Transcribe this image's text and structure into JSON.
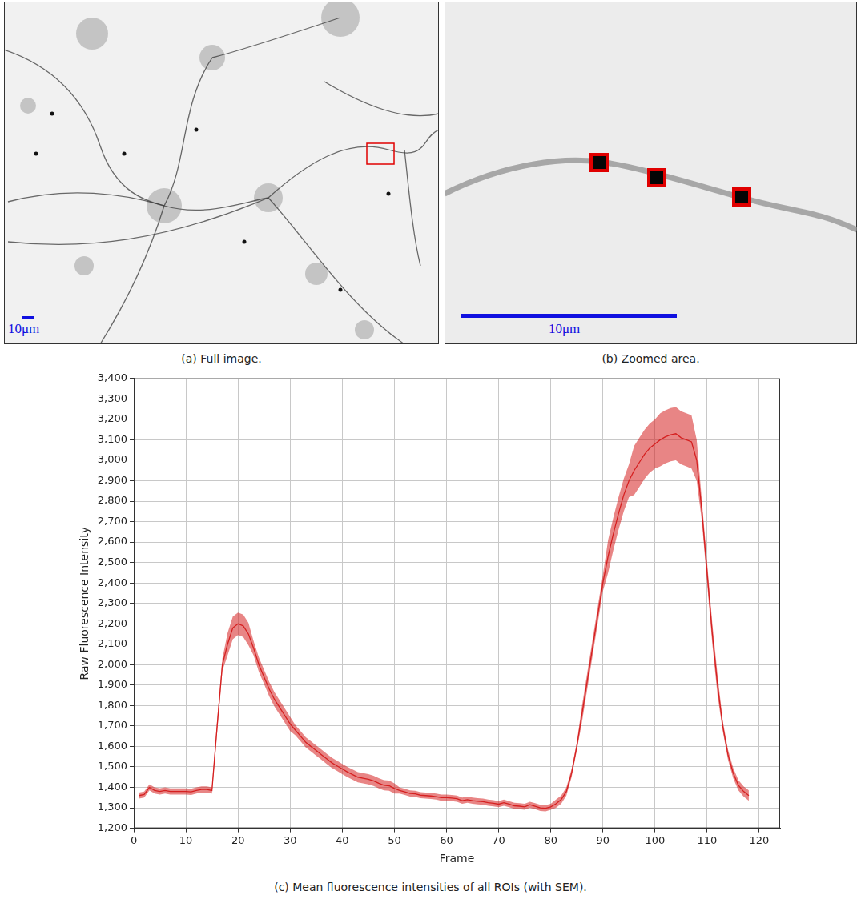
{
  "panels": [
    {
      "caption": "(a) Full image.",
      "scale_bar": "10μm"
    },
    {
      "caption": "(b) Zoomed area.",
      "scale_bar": "10μm"
    }
  ],
  "chart_data": {
    "type": "line",
    "title": "(c) Mean fluorescence intensities of all ROIs (with SEM).",
    "x_label": "Frame",
    "y_label": "Raw Fluorescence Intensity",
    "x": [
      1,
      2,
      3,
      4,
      5,
      6,
      7,
      8,
      9,
      10,
      11,
      12,
      13,
      14,
      15,
      16,
      17,
      18,
      19,
      20,
      21,
      22,
      23,
      24,
      25,
      26,
      27,
      28,
      29,
      30,
      31,
      32,
      33,
      34,
      35,
      36,
      37,
      38,
      39,
      40,
      41,
      42,
      43,
      44,
      45,
      46,
      47,
      48,
      49,
      50,
      51,
      52,
      53,
      54,
      55,
      56,
      57,
      58,
      59,
      60,
      61,
      62,
      63,
      64,
      65,
      66,
      67,
      68,
      69,
      70,
      71,
      72,
      73,
      74,
      75,
      76,
      77,
      78,
      79,
      80,
      81,
      82,
      83,
      84,
      85,
      86,
      87,
      88,
      89,
      90,
      91,
      92,
      93,
      94,
      95,
      96,
      97,
      98,
      99,
      100,
      101,
      102,
      103,
      104,
      105,
      106,
      107,
      108,
      109,
      110,
      111,
      112,
      113,
      114,
      115,
      116,
      117,
      118
    ],
    "series": [
      {
        "color": "#d62020",
        "values": [
          1360,
          1365,
          1400,
          1385,
          1380,
          1385,
          1380,
          1380,
          1380,
          1380,
          1378,
          1385,
          1390,
          1390,
          1385,
          1700,
          2000,
          2100,
          2180,
          2200,
          2190,
          2150,
          2080,
          2000,
          1940,
          1880,
          1830,
          1790,
          1750,
          1710,
          1680,
          1650,
          1620,
          1600,
          1580,
          1560,
          1540,
          1520,
          1505,
          1490,
          1475,
          1462,
          1450,
          1445,
          1440,
          1432,
          1420,
          1410,
          1408,
          1395,
          1385,
          1378,
          1370,
          1368,
          1362,
          1360,
          1358,
          1355,
          1350,
          1350,
          1348,
          1345,
          1335,
          1340,
          1335,
          1332,
          1330,
          1325,
          1322,
          1318,
          1325,
          1318,
          1310,
          1308,
          1305,
          1315,
          1308,
          1300,
          1298,
          1305,
          1320,
          1340,
          1380,
          1470,
          1600,
          1760,
          1920,
          2080,
          2240,
          2400,
          2530,
          2640,
          2740,
          2830,
          2900,
          2950,
          2990,
          3030,
          3060,
          3080,
          3100,
          3115,
          3125,
          3130,
          3110,
          3100,
          3090,
          3000,
          2750,
          2450,
          2150,
          1900,
          1700,
          1560,
          1470,
          1410,
          1380,
          1360
        ],
        "sem": [
          15,
          15,
          15,
          15,
          15,
          15,
          15,
          15,
          15,
          15,
          15,
          15,
          15,
          15,
          15,
          30,
          30,
          55,
          55,
          55,
          55,
          55,
          35,
          35,
          35,
          35,
          35,
          35,
          35,
          35,
          25,
          25,
          25,
          25,
          25,
          25,
          25,
          25,
          25,
          25,
          25,
          25,
          25,
          25,
          25,
          25,
          25,
          25,
          25,
          25,
          15,
          15,
          15,
          15,
          15,
          15,
          15,
          15,
          15,
          15,
          15,
          15,
          15,
          15,
          15,
          15,
          15,
          15,
          15,
          15,
          15,
          15,
          15,
          15,
          15,
          15,
          15,
          15,
          15,
          15,
          20,
          20,
          20,
          20,
          20,
          40,
          40,
          40,
          40,
          40,
          80,
          80,
          80,
          80,
          80,
          120,
          120,
          120,
          120,
          120,
          130,
          130,
          130,
          130,
          130,
          130,
          130,
          100,
          50,
          50,
          50,
          50,
          25,
          25,
          25,
          25,
          25,
          25
        ]
      }
    ],
    "xlim": [
      0,
      124
    ],
    "xticks": [
      0,
      10,
      20,
      30,
      40,
      50,
      60,
      70,
      80,
      90,
      100,
      110,
      120
    ],
    "ylim": [
      1200,
      3400
    ],
    "yticks": [
      {
        "value": 1200,
        "label": "1,200"
      },
      {
        "value": 1300,
        "label": "1,300"
      },
      {
        "value": 1400,
        "label": "1,400"
      },
      {
        "value": 1500,
        "label": "1,500"
      },
      {
        "value": 1600,
        "label": "1,600"
      },
      {
        "value": 1700,
        "label": "1,700"
      },
      {
        "value": 1800,
        "label": "1,800"
      },
      {
        "value": 1900,
        "label": "1,900"
      },
      {
        "value": 2000,
        "label": "2,000"
      },
      {
        "value": 2100,
        "label": "2,100"
      },
      {
        "value": 2200,
        "label": "2,200"
      },
      {
        "value": 2300,
        "label": "2,300"
      },
      {
        "value": 2400,
        "label": "2,400"
      },
      {
        "value": 2500,
        "label": "2,500"
      },
      {
        "value": 2600,
        "label": "2,600"
      },
      {
        "value": 2700,
        "label": "2,700"
      },
      {
        "value": 2800,
        "label": "2,800"
      },
      {
        "value": 2900,
        "label": "2,900"
      },
      {
        "value": 3000,
        "label": "3,000"
      },
      {
        "value": 3100,
        "label": "3,100"
      },
      {
        "value": 3200,
        "label": "3,200"
      },
      {
        "value": 3300,
        "label": "3,300"
      },
      {
        "value": 3400,
        "label": "3,400"
      }
    ],
    "grid": true
  }
}
